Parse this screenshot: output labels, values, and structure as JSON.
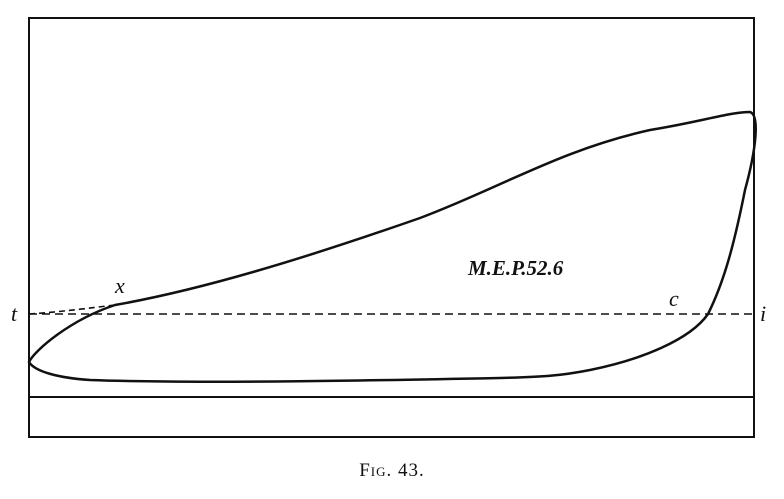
{
  "diagram": {
    "annotation": "M.E.P.52.6",
    "points": {
      "t": "t",
      "x": "x",
      "c": "c",
      "i": "i"
    },
    "caption": "Fig. 43."
  }
}
